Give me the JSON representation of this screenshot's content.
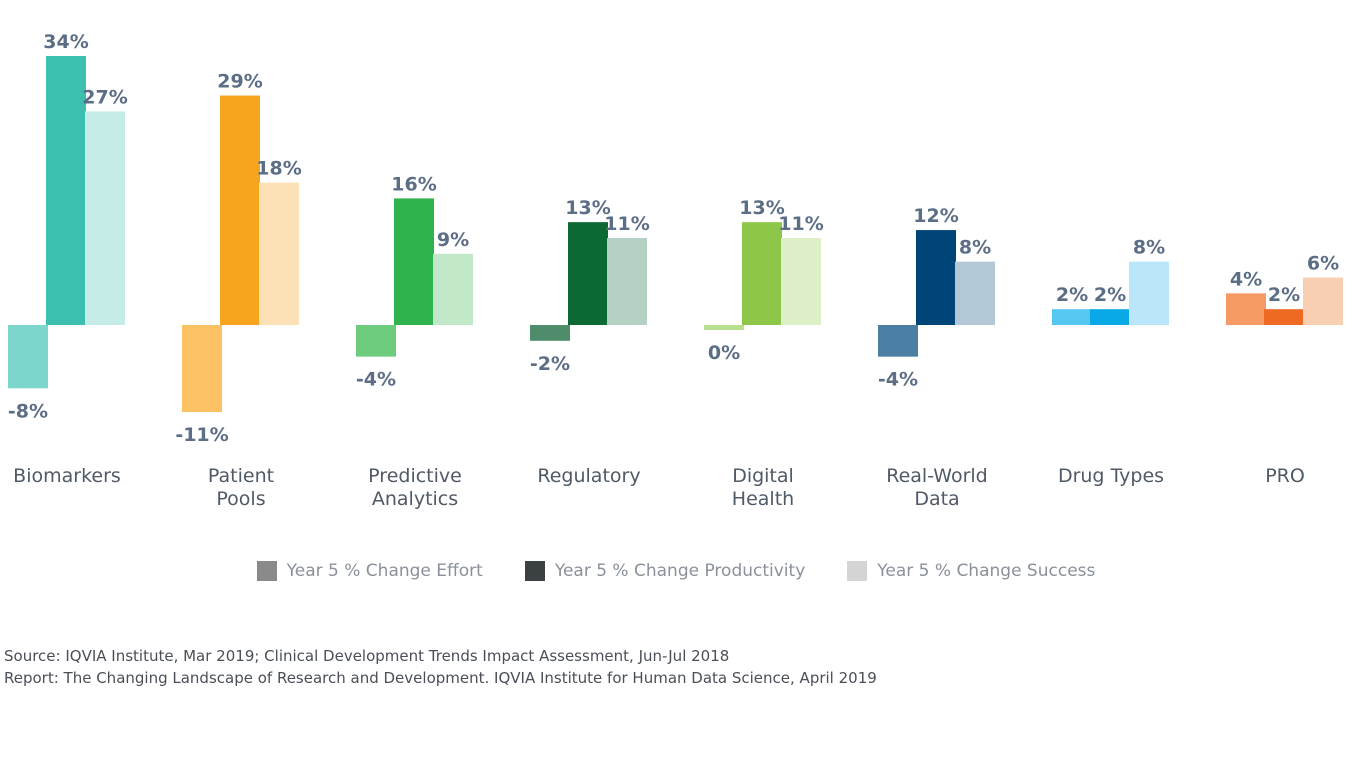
{
  "chart_data": {
    "type": "bar",
    "categories": [
      [
        "Biomarkers"
      ],
      [
        "Patient",
        "Pools"
      ],
      [
        "Predictive",
        "Analytics"
      ],
      [
        "Regulatory"
      ],
      [
        "Digital",
        "Health"
      ],
      [
        "Real-World",
        "Data"
      ],
      [
        "Drug Types"
      ],
      [
        "PRO"
      ]
    ],
    "series": [
      {
        "name": "Year 5 % Change Effort",
        "values": [
          -8,
          -11,
          -4,
          -2,
          0,
          -4,
          2,
          4
        ]
      },
      {
        "name": "Year 5 % Change Productivity",
        "values": [
          34,
          29,
          16,
          13,
          13,
          12,
          2,
          2
        ]
      },
      {
        "name": "Year 5 % Change Success",
        "values": [
          27,
          18,
          9,
          11,
          11,
          8,
          8,
          6
        ]
      }
    ],
    "value_labels": [
      [
        "-8%",
        "-11%",
        "-4%",
        "-2%",
        "0%",
        "-4%",
        "2%",
        "4%"
      ],
      [
        "34%",
        "29%",
        "16%",
        "13%",
        "13%",
        "12%",
        "2%",
        "2%"
      ],
      [
        "27%",
        "18%",
        "9%",
        "11%",
        "11%",
        "8%",
        "8%",
        "6%"
      ]
    ],
    "category_colors": [
      [
        "#7dd6cb",
        "#3dbfb0",
        "#c6ece7"
      ],
      [
        "#fbc162",
        "#f7a51f",
        "#fde1b6"
      ],
      [
        "#6ecc7e",
        "#2fb34d",
        "#c1e8c9"
      ],
      [
        "#4f8c6b",
        "#0d6934",
        "#b5d1c4"
      ],
      [
        "#b9e08e",
        "#8dc648",
        "#dcefc6"
      ],
      [
        "#4a7ea3",
        "#004578",
        "#b3c8d6"
      ],
      [
        "#56c7f0",
        "#08a9e6",
        "#b9e7f9"
      ],
      [
        "#f59a65",
        "#ee6a22",
        "#f9cfb4"
      ]
    ],
    "ylim": [
      -11,
      34
    ],
    "legend_position": "bottom-center"
  },
  "legend": [
    {
      "label": "Year 5 % Change Effort",
      "color": "#8a8a8a"
    },
    {
      "label": "Year 5 % Change Productivity",
      "color": "#3b4143"
    },
    {
      "label": "Year 5 % Change Success",
      "color": "#d4d4d4"
    }
  ],
  "source": {
    "line1": "Source: IQVIA Institute, Mar 2019; Clinical Development Trends Impact Assessment, Jun-Jul 2018",
    "line2": "Report: The Changing Landscape of Research and Development. IQVIA Institute for Human Data Science, April 2019"
  }
}
